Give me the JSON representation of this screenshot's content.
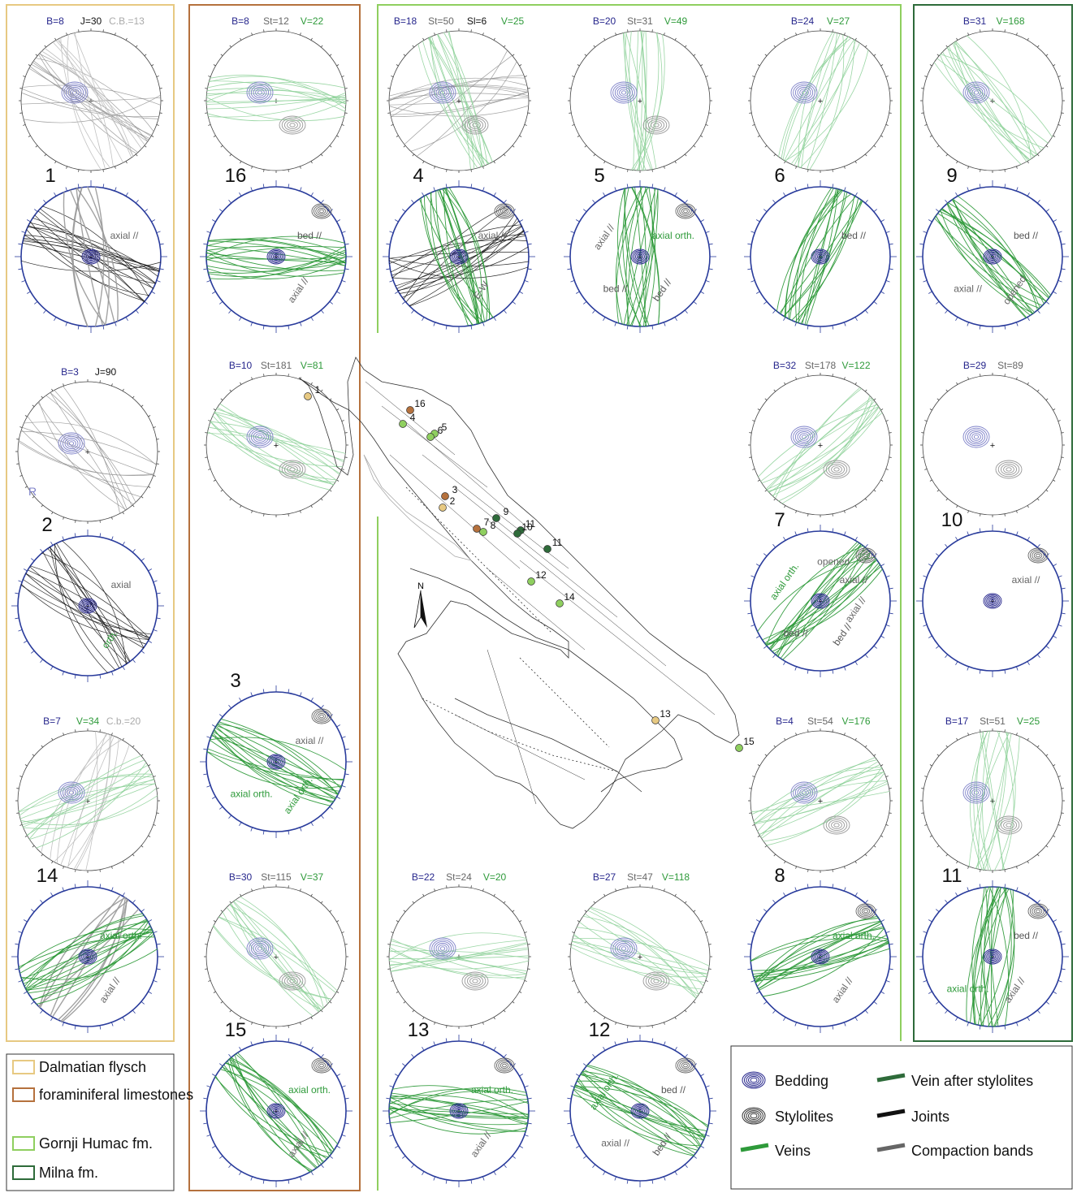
{
  "colors": {
    "flysch": "#e7c982",
    "foram": "#b5713d",
    "humac": "#8fcf5f",
    "milna": "#2e6b3a",
    "bedding": "#7d80c8",
    "bedding_dark": "#26268c",
    "stylolite": "#8a8a8a",
    "vein": "#2e9a3a",
    "vein_light": "#8fd29a",
    "joint": "#111111",
    "compaction": "#aaaaaa",
    "net_rim": "#2a3c9c"
  },
  "stations": [
    {
      "id": "1",
      "upper_counts": [
        "B=8",
        "J=30",
        "C.B.=13"
      ],
      "upper_kinds": [
        "bedding",
        "joint",
        "compaction"
      ],
      "lower_labels": [
        "axial //"
      ]
    },
    {
      "id": "2",
      "upper_counts": [
        "B=3",
        "J=90"
      ],
      "upper_kinds": [
        "bedding",
        "joint"
      ],
      "upper_extra": "R",
      "lower_labels": [
        "axial",
        "orth."
      ]
    },
    {
      "id": "14",
      "upper_counts": [
        "B=7",
        "V=34",
        "C.b.=20"
      ],
      "upper_kinds": [
        "bedding",
        "vein",
        "compaction"
      ],
      "lower_labels": [
        "axial orth.",
        "axial //"
      ]
    },
    {
      "id": "16",
      "upper_counts": [
        "B=8",
        "St=12",
        "V=22"
      ],
      "upper_kinds": [
        "bedding",
        "stylolite",
        "vein"
      ],
      "lower_labels": [
        "bed //",
        "axial //"
      ]
    },
    {
      "id": "3",
      "upper_counts": [
        "B=10",
        "St=181",
        "V=81"
      ],
      "upper_kinds": [
        "bedding",
        "stylolite",
        "vein"
      ],
      "lower_labels": [
        "axial //",
        "axial orth.",
        "axial orth."
      ]
    },
    {
      "id": "15",
      "upper_counts": [
        "B=30",
        "St=115",
        "V=37"
      ],
      "upper_kinds": [
        "bedding",
        "stylolite",
        "vein"
      ],
      "lower_labels": [
        "axial orth.",
        "axial //"
      ]
    },
    {
      "id": "4",
      "upper_counts": [
        "B=18",
        "St=50",
        "Sl=6",
        "V=25"
      ],
      "upper_kinds": [
        "bedding",
        "stylolite",
        "joint",
        "vein"
      ],
      "lower_labels": [
        "axial //",
        "E-W"
      ]
    },
    {
      "id": "5",
      "upper_counts": [
        "B=20",
        "St=31",
        "V=49"
      ],
      "upper_kinds": [
        "bedding",
        "stylolite",
        "vein"
      ],
      "lower_labels": [
        "axial orth.",
        "bed //",
        "bed //",
        "axial //"
      ]
    },
    {
      "id": "6",
      "upper_counts": [
        "B=24",
        "V=27"
      ],
      "upper_kinds": [
        "bedding",
        "vein"
      ],
      "lower_labels": [
        "bed //"
      ]
    },
    {
      "id": "7",
      "upper_counts": [
        "B=32",
        "St=178",
        "V=122"
      ],
      "upper_kinds": [
        "bedding",
        "stylolite",
        "vein"
      ],
      "lower_labels": [
        "axial //",
        "bed //",
        "bed //",
        "axial orth.",
        "opened",
        "axial //"
      ]
    },
    {
      "id": "8",
      "upper_counts": [
        "B=4",
        "St=54",
        "V=176"
      ],
      "upper_kinds": [
        "bedding",
        "stylolite",
        "vein"
      ],
      "lower_labels": [
        "axial orth.",
        "axial //"
      ]
    },
    {
      "id": "13",
      "upper_counts": [
        "B=22",
        "St=24",
        "V=20"
      ],
      "upper_kinds": [
        "bedding",
        "stylolite",
        "vein"
      ],
      "lower_labels": [
        "axial orth.",
        "axial //"
      ]
    },
    {
      "id": "12",
      "upper_counts": [
        "B=27",
        "St=47",
        "V=118"
      ],
      "upper_kinds": [
        "bedding",
        "stylolite",
        "vein"
      ],
      "lower_labels": [
        "bed //",
        "bed //",
        "axial //",
        "axial orth."
      ]
    },
    {
      "id": "9",
      "upper_counts": [
        "B=31",
        "V=168"
      ],
      "upper_kinds": [
        "bedding",
        "vein"
      ],
      "lower_labels": [
        "bed //",
        "opened",
        "axial //"
      ]
    },
    {
      "id": "10",
      "upper_counts": [
        "B=29",
        "St=89"
      ],
      "upper_kinds": [
        "bedding",
        "stylolite"
      ],
      "lower_labels": [
        "axial //"
      ]
    },
    {
      "id": "11",
      "upper_counts": [
        "B=17",
        "St=51",
        "V=25"
      ],
      "upper_kinds": [
        "bedding",
        "stylolite",
        "vein"
      ],
      "lower_labels": [
        "bed //",
        "axial //",
        "axial orth."
      ]
    }
  ],
  "map": {
    "north": "N",
    "sites": [
      "1",
      "16",
      "4",
      "5",
      "6",
      "3",
      "2",
      "9",
      "7",
      "8",
      "11",
      "10",
      "11",
      "12",
      "14",
      "13",
      "15"
    ]
  },
  "legend_units": [
    {
      "label": "Dalmatian flysch"
    },
    {
      "label": "foraminiferal limestones"
    },
    {
      "label": "Gornji Humac fm."
    },
    {
      "label": "Milna fm."
    }
  ],
  "legend_symbols": [
    {
      "label": "Bedding"
    },
    {
      "label": "Vein after stylolites"
    },
    {
      "label": "Stylolites"
    },
    {
      "label": "Joints"
    },
    {
      "label": "Veins"
    },
    {
      "label": "Compaction bands"
    }
  ]
}
